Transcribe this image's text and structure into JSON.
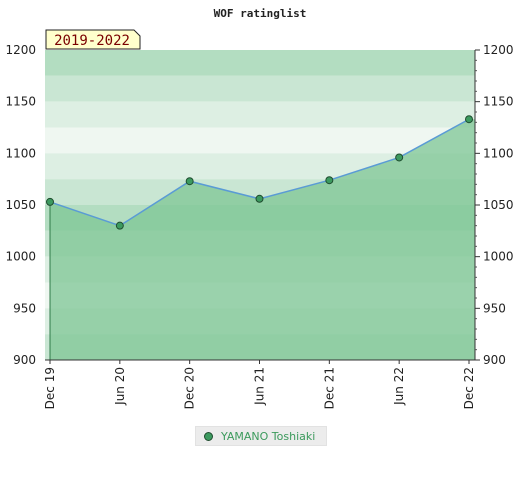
{
  "chart_data": {
    "type": "area",
    "title": "WOF ratinglist",
    "badge": "2019-2022",
    "categories": [
      "Dec 19",
      "Jun 20",
      "Dec 20",
      "Jun 21",
      "Dec 21",
      "Jun 22",
      "Dec 22"
    ],
    "series": [
      {
        "name": "YAMANO Toshiaki",
        "values": [
          1053,
          1030,
          1073,
          1056,
          1074,
          1096,
          1133
        ]
      }
    ],
    "ylim": [
      900,
      1200
    ],
    "yticks": [
      900,
      950,
      1000,
      1050,
      1100,
      1150,
      1200
    ],
    "y_axis_both_sides": true,
    "grid": true,
    "legend_position": "bottom-center",
    "colors": {
      "line": "#5a9bd5",
      "area": "#7dc694",
      "marker": "#3c9a5f",
      "marker_edge": "#1f4d2f",
      "band_dark": "#b3ddc1",
      "band_mid": "#c9e6d3",
      "band_light": "#ddefe3",
      "band_lightest": "#eff7f1",
      "badge_bg": "#ffffcc"
    }
  }
}
